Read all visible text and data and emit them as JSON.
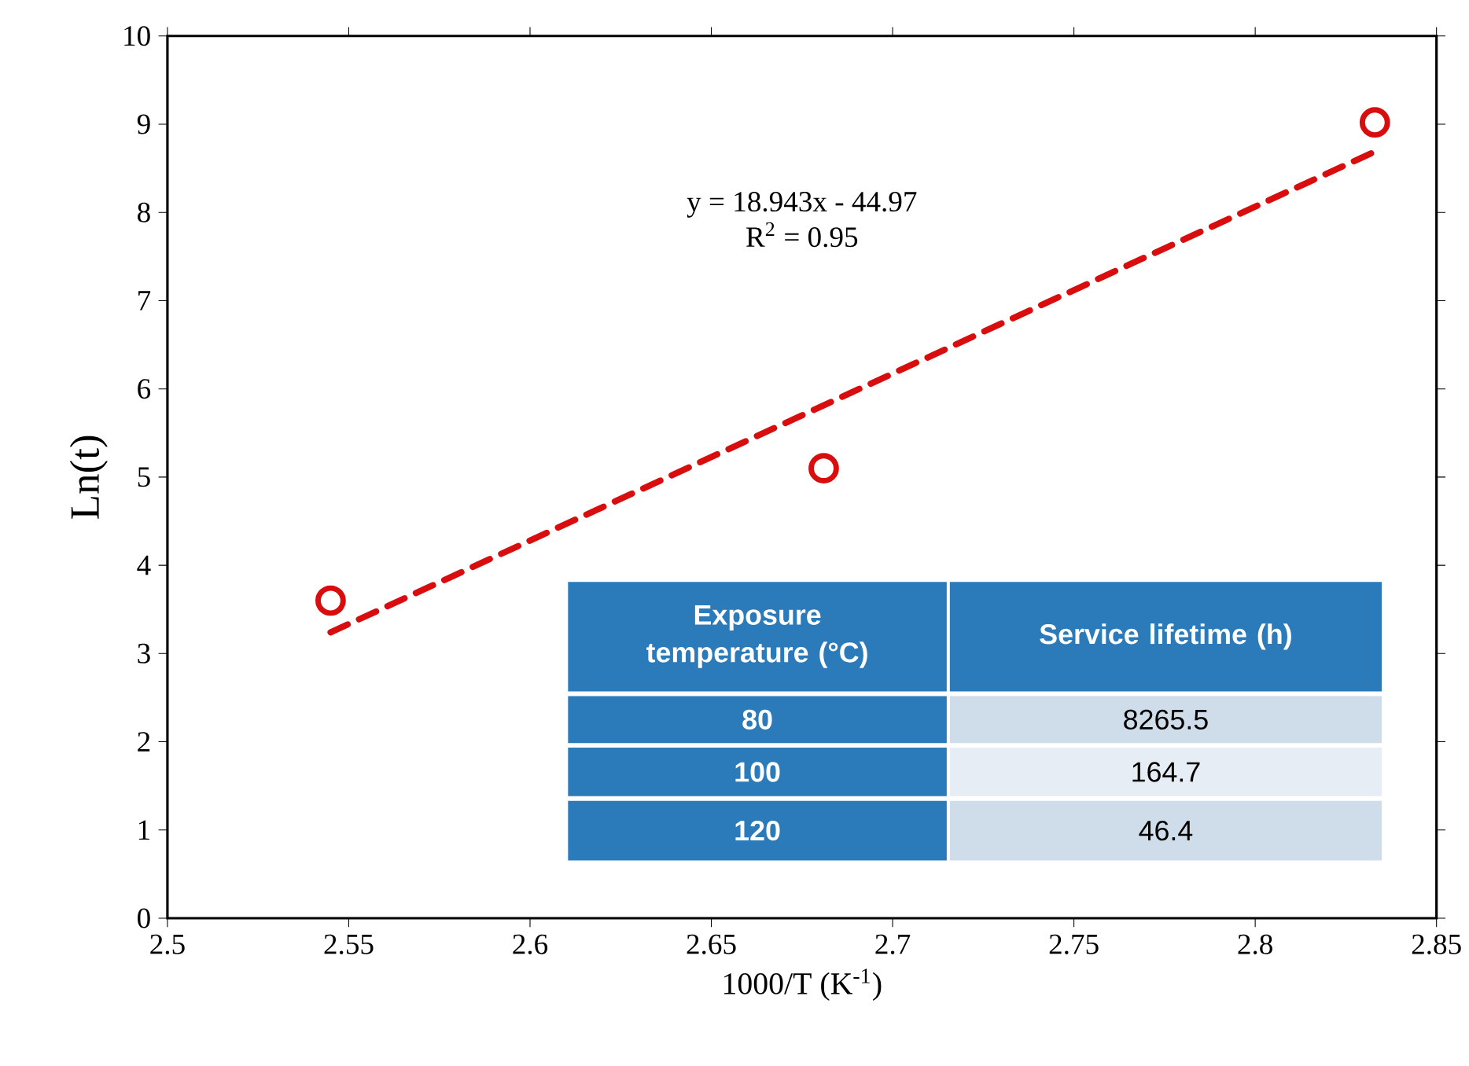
{
  "chart_data": {
    "type": "scatter",
    "xlabel": "1000/T (K$^{-1}$)",
    "ylabel": "Ln(t)",
    "xlim": [
      2.5,
      2.85
    ],
    "xticks": [
      2.5,
      2.55,
      2.6,
      2.65,
      2.7,
      2.75,
      2.8,
      2.85
    ],
    "ylim": [
      0,
      10
    ],
    "yticks": [
      0,
      1,
      2,
      3,
      4,
      5,
      6,
      7,
      8,
      9,
      10
    ],
    "grid": false,
    "series": [
      {
        "color": "#d90d0d",
        "marker": "circle",
        "x": [
          2.545,
          2.681,
          2.833
        ],
        "values": [
          3.6,
          5.1,
          9.02
        ]
      },
      {
        "type": "line",
        "color": "#d90d0d",
        "marker": "none",
        "line_style": "dashed",
        "x": [
          2.545,
          2.833
        ],
        "values": [
          3.24,
          8.69
        ]
      }
    ],
    "annotations": [
      "y = 18.943x - 44.97",
      "R$^{2}$ = 0.95",
      "Exposure temperature (°C)",
      "Service lifetime (h)",
      "80",
      "8265.5",
      "100",
      "164.7",
      "120",
      "46.4"
    ]
  }
}
